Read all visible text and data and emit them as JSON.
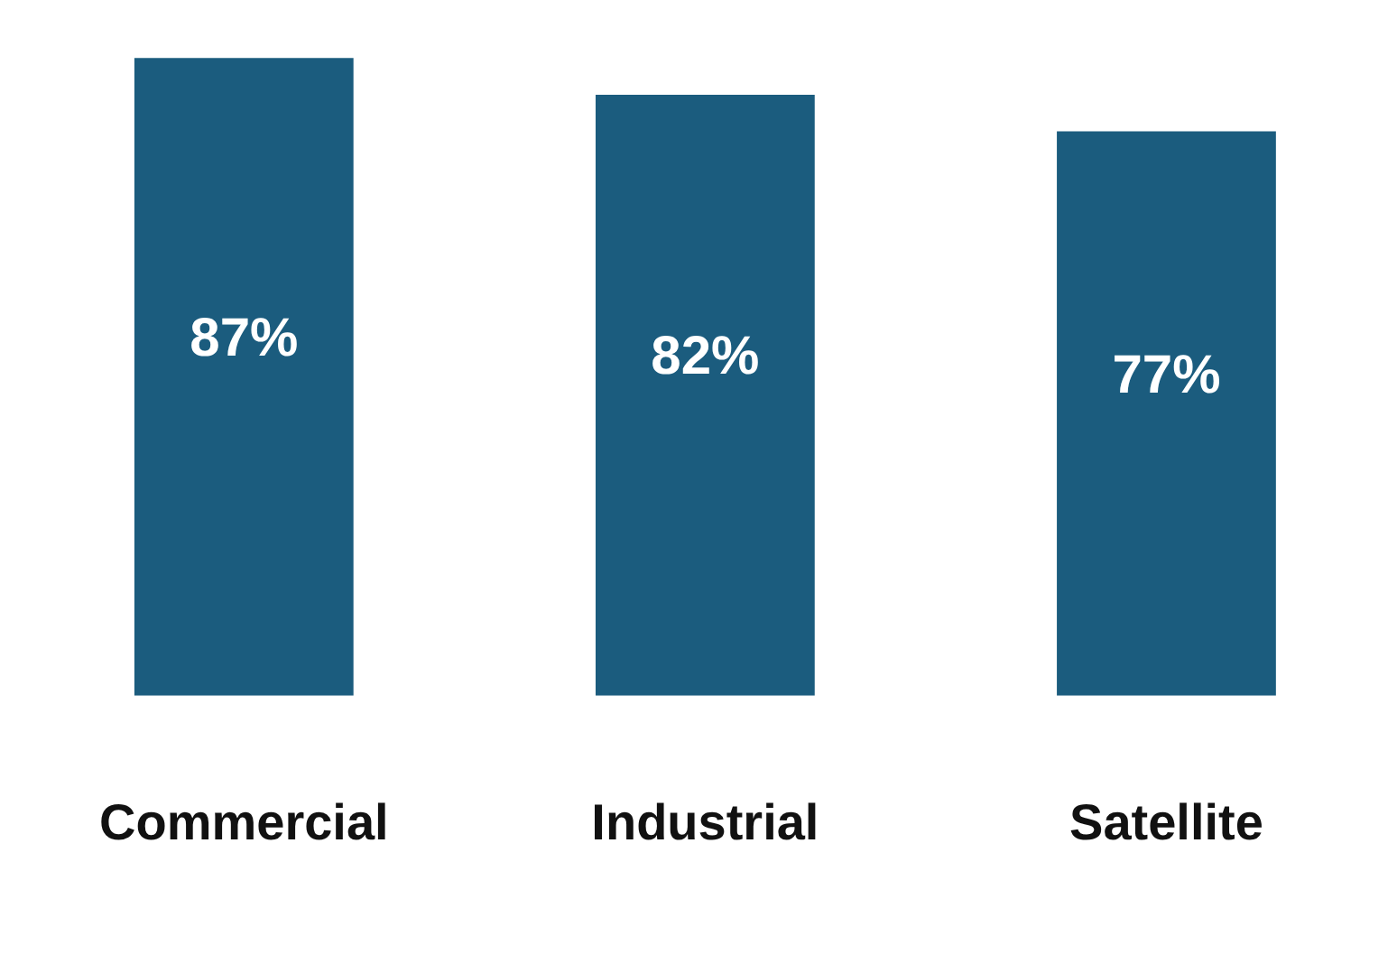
{
  "chart_data": {
    "type": "bar",
    "categories": [
      "Commercial",
      "Industrial",
      "Satellite"
    ],
    "values": [
      87,
      82,
      77
    ],
    "color": "#1b5c7e",
    "value_labels": [
      "87%",
      "82%",
      "77%"
    ],
    "grid": false,
    "legend": false
  }
}
